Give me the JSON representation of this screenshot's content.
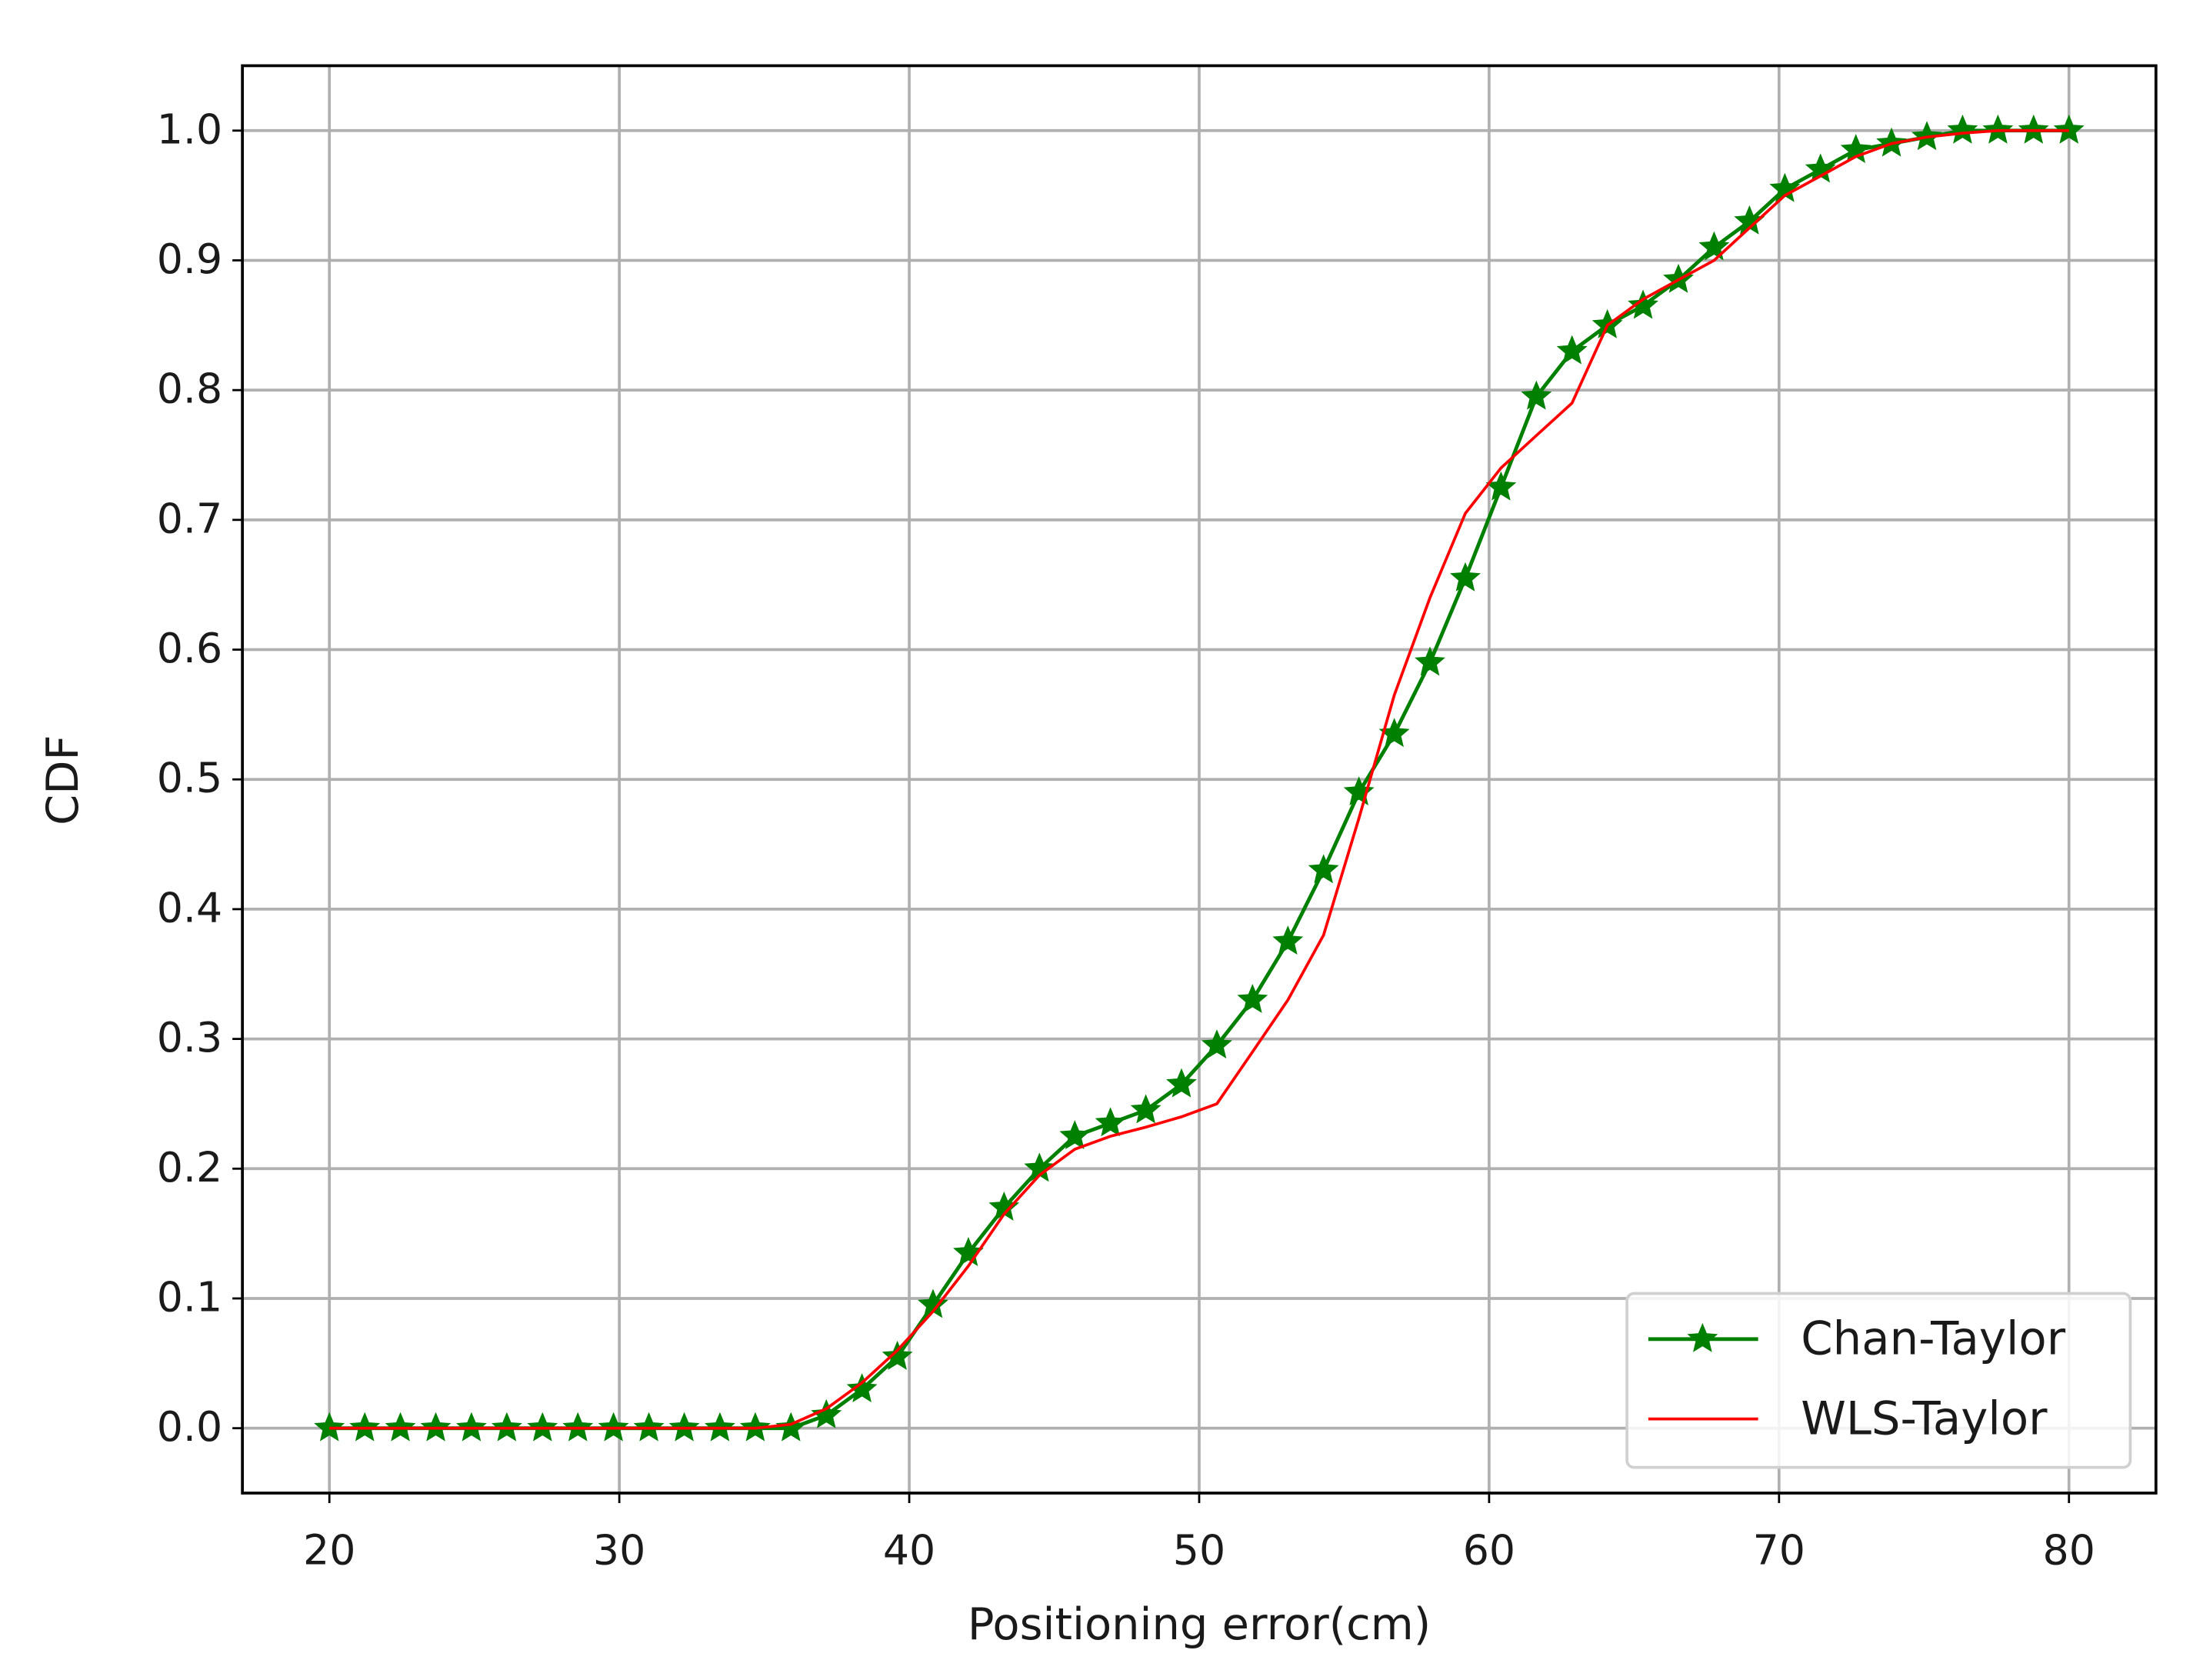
{
  "chart_data": {
    "type": "line",
    "x_label": "Positioning error(cm)",
    "y_label": "CDF",
    "x": [
      20.0,
      21.22,
      22.45,
      23.67,
      24.9,
      26.12,
      27.35,
      28.57,
      29.8,
      31.02,
      32.24,
      33.47,
      34.69,
      35.92,
      37.14,
      38.37,
      39.59,
      40.82,
      42.04,
      43.27,
      44.49,
      45.71,
      46.94,
      48.16,
      49.39,
      50.61,
      51.84,
      53.06,
      54.29,
      55.51,
      56.73,
      57.96,
      59.18,
      60.41,
      61.63,
      62.86,
      64.08,
      65.31,
      66.53,
      67.76,
      68.98,
      70.2,
      71.43,
      72.65,
      73.88,
      75.1,
      76.33,
      77.55,
      78.78,
      80.0
    ],
    "series": [
      {
        "name": "Chan-Taylor",
        "color": "#008000",
        "marker": "star",
        "values": [
          0,
          0,
          0,
          0,
          0,
          0,
          0,
          0,
          0,
          0,
          0,
          0,
          0,
          0,
          0.01,
          0.03,
          0.055,
          0.095,
          0.135,
          0.17,
          0.2,
          0.225,
          0.235,
          0.245,
          0.265,
          0.295,
          0.33,
          0.375,
          0.43,
          0.49,
          0.535,
          0.59,
          0.655,
          0.725,
          0.795,
          0.83,
          0.85,
          0.865,
          0.885,
          0.91,
          0.93,
          0.955,
          0.97,
          0.985,
          0.99,
          0.995,
          1.0,
          1.0,
          1.0,
          1.0
        ]
      },
      {
        "name": "WLS-Taylor",
        "color": "#ff0000",
        "values": [
          0,
          0,
          0,
          0,
          0,
          0,
          0,
          0,
          0,
          0,
          0,
          0,
          0,
          0.003,
          0.015,
          0.035,
          0.06,
          0.09,
          0.125,
          0.165,
          0.195,
          0.215,
          0.225,
          0.232,
          0.24,
          0.25,
          0.29,
          0.33,
          0.38,
          0.47,
          0.565,
          0.64,
          0.705,
          0.74,
          0.765,
          0.79,
          0.85,
          0.87,
          0.885,
          0.9,
          0.925,
          0.95,
          0.965,
          0.98,
          0.99,
          0.995,
          0.998,
          1.0,
          1.0,
          1.0
        ]
      }
    ],
    "xlim": [
      17,
      83
    ],
    "ylim": [
      -0.05,
      1.05
    ],
    "xticks": [
      20,
      30,
      40,
      50,
      60,
      70,
      80
    ],
    "yticks": [
      {
        "value": 0,
        "label": "0.0"
      },
      0.1,
      0.2,
      0.3,
      0.4,
      0.5,
      0.6,
      0.7,
      0.8,
      0.9,
      {
        "value": 1,
        "label": "1.0"
      }
    ],
    "grid": true,
    "legend": "lower right"
  }
}
